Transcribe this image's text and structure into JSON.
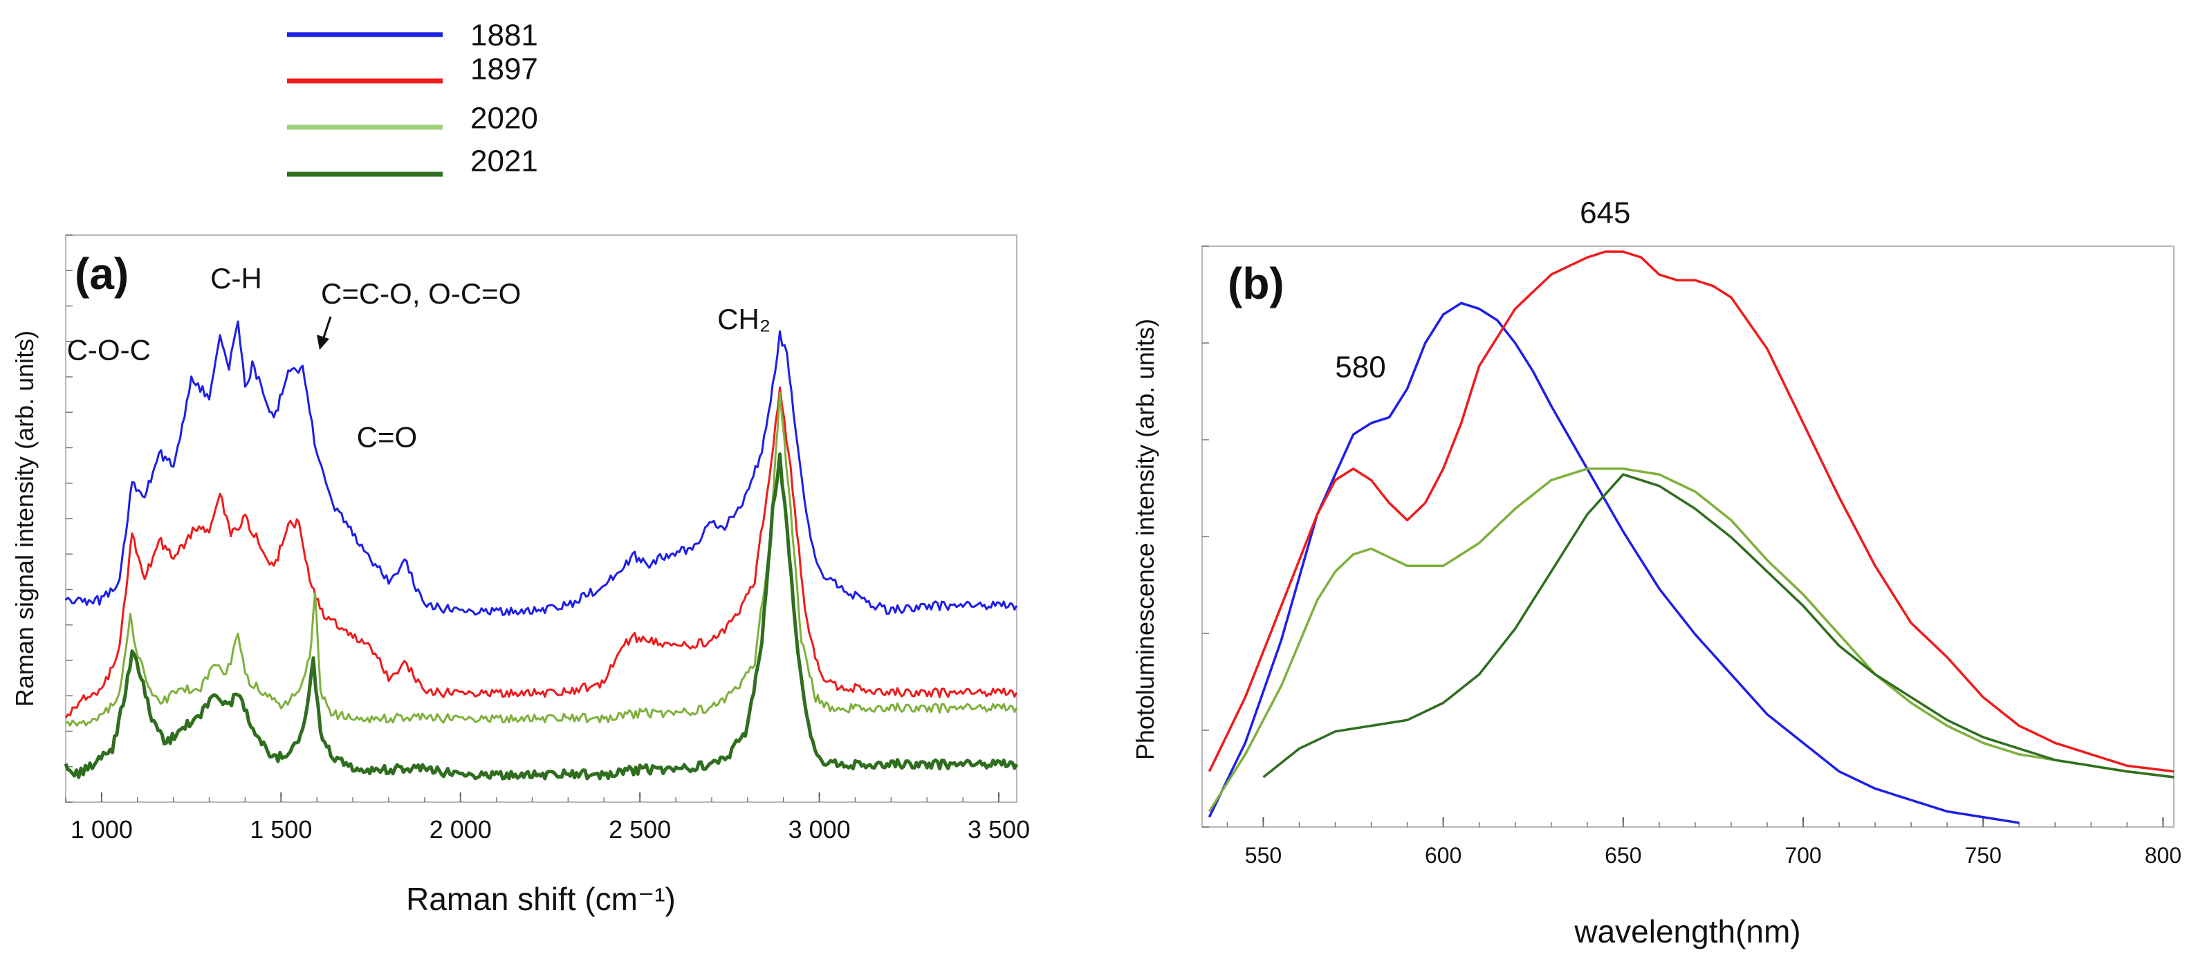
{
  "legend": [
    {
      "label": "1881",
      "color": "#1f1fe6"
    },
    {
      "label": "1897",
      "color": "#ee1c1c"
    },
    {
      "label": "2020",
      "color": "#9fd07a"
    },
    {
      "label": "2021",
      "color": "#2f6e1f"
    }
  ],
  "chart_data": [
    {
      "type": "line",
      "panel_label": "(a)",
      "xlabel": "Raman shift (cm⁻¹)",
      "ylabel": "Raman signal intensity (arb. units)",
      "xlim": [
        900,
        3550
      ],
      "ylim": [
        0,
        100
      ],
      "xticks": [
        1000,
        1500,
        2000,
        2500,
        3000,
        3500
      ],
      "xtick_labels": [
        "1 000",
        "1 500",
        "2 000",
        "2 500",
        "3 000",
        "3 500"
      ],
      "annotations": [
        {
          "text": "C-O-C",
          "x": 1020,
          "y": 81
        },
        {
          "text": "C-H",
          "x": 1375,
          "y": 95
        },
        {
          "text": "C=C-O, O-C=O",
          "x": 1890,
          "y": 92
        },
        {
          "text": "C=O",
          "x": 1795,
          "y": 64
        },
        {
          "text": "CH₂",
          "x": 2790,
          "y": 87
        }
      ],
      "series": [
        {
          "name": "1881",
          "color": "#1f1fe6",
          "x": [
            900,
            1000,
            1050,
            1085,
            1120,
            1160,
            1200,
            1250,
            1300,
            1330,
            1355,
            1380,
            1400,
            1420,
            1450,
            1480,
            1520,
            1560,
            1580,
            1600,
            1650,
            1700,
            1750,
            1800,
            1850,
            1870,
            1900,
            2000,
            2100,
            2200,
            2300,
            2350,
            2400,
            2450,
            2480,
            2520,
            2580,
            2640,
            2700,
            2730,
            2780,
            2840,
            2870,
            2890,
            2910,
            2940,
            2970,
            3000,
            3050,
            3100,
            3150,
            3200,
            3300,
            3400,
            3550
          ],
          "y": [
            34,
            34,
            38,
            57,
            54,
            63,
            60,
            77,
            74,
            86,
            79,
            89,
            75,
            80,
            75,
            69,
            79,
            79,
            71,
            62,
            52,
            47,
            42,
            38,
            42,
            37,
            33,
            32,
            32,
            32,
            33,
            35,
            37,
            40,
            43,
            41,
            43,
            44,
            49,
            48,
            52,
            63,
            76,
            86,
            82,
            64,
            48,
            40,
            37,
            35,
            33,
            32,
            33,
            33,
            33
          ]
        },
        {
          "name": "1897",
          "color": "#ee1c1c",
          "x": [
            900,
            950,
            1000,
            1050,
            1085,
            1120,
            1160,
            1200,
            1260,
            1300,
            1330,
            1360,
            1400,
            1450,
            1480,
            1520,
            1550,
            1580,
            1620,
            1700,
            1750,
            1800,
            1850,
            1870,
            1900,
            2000,
            2100,
            2200,
            2300,
            2400,
            2450,
            2480,
            2520,
            2600,
            2700,
            2760,
            2820,
            2860,
            2890,
            2920,
            2960,
            3000,
            3050,
            3100,
            3200,
            3300,
            3400,
            3550
          ],
          "y": [
            11,
            15,
            16,
            25,
            47,
            38,
            46,
            42,
            48,
            48,
            55,
            47,
            50,
            44,
            40,
            49,
            49,
            38,
            31,
            27,
            25,
            19,
            22,
            19,
            16,
            16,
            16,
            16,
            16,
            18,
            25,
            27,
            26,
            25,
            26,
            30,
            38,
            58,
            75,
            60,
            32,
            20,
            17,
            17,
            16,
            16,
            16,
            16
          ]
        },
        {
          "name": "2020",
          "color": "#7fb03c",
          "x": [
            900,
            950,
            1000,
            1050,
            1080,
            1095,
            1130,
            1170,
            1220,
            1270,
            1320,
            1340,
            1360,
            1380,
            1400,
            1450,
            1500,
            1550,
            1580,
            1595,
            1610,
            1640,
            1700,
            1800,
            1900,
            2000,
            2100,
            2200,
            2300,
            2400,
            2500,
            2600,
            2700,
            2760,
            2820,
            2860,
            2890,
            2920,
            2950,
            2990,
            3030,
            3100,
            3200,
            3300,
            3400,
            3550
          ],
          "y": [
            10,
            10,
            11,
            16,
            31,
            25,
            17,
            14,
            17,
            16,
            22,
            19,
            22,
            28,
            19,
            16,
            13,
            16,
            23,
            35,
            16,
            12,
            11,
            11,
            11,
            11,
            11,
            11,
            11,
            11,
            12,
            12,
            13,
            16,
            22,
            44,
            74,
            52,
            26,
            15,
            13,
            13,
            13,
            13,
            13,
            13
          ]
        },
        {
          "name": "2021",
          "color": "#2f6e1f",
          "x": [
            900,
            930,
            980,
            1030,
            1060,
            1085,
            1110,
            1140,
            1180,
            1220,
            1270,
            1320,
            1350,
            1380,
            1410,
            1440,
            1480,
            1520,
            1560,
            1590,
            1610,
            1650,
            1700,
            1800,
            1900,
            2000,
            2100,
            2200,
            2300,
            2400,
            2500,
            2600,
            2700,
            2750,
            2800,
            2840,
            2870,
            2890,
            2910,
            2940,
            2970,
            3000,
            3050,
            3100,
            3200,
            3300,
            3400,
            3550
          ],
          "y": [
            2,
            0,
            2,
            5,
            14,
            24,
            19,
            11,
            6,
            9,
            11,
            16,
            13,
            16,
            11,
            7,
            3,
            4,
            8,
            22,
            8,
            3,
            1,
            1,
            1,
            0,
            0,
            0,
            0,
            0,
            1,
            1,
            2,
            4,
            9,
            26,
            52,
            62,
            48,
            24,
            9,
            3,
            2,
            2,
            2,
            2,
            2,
            2
          ]
        }
      ]
    },
    {
      "type": "line",
      "panel_label": "(b)",
      "xlabel": "wavelength(nm)",
      "ylabel": "Photoluminescence intensity (arb. units)",
      "xlim": [
        533,
        803
      ],
      "ylim": [
        0,
        100
      ],
      "xticks": [
        550,
        600,
        650,
        700,
        750,
        800
      ],
      "xtick_labels": [
        "550",
        "600",
        "650",
        "700",
        "750",
        "800"
      ],
      "annotations": [
        {
          "text": "645",
          "x": 645,
          "y": 105
        },
        {
          "text": "580",
          "x": 577,
          "y": 78
        }
      ],
      "series": [
        {
          "name": "1881",
          "color": "#1f1fe6",
          "x": [
            535,
            545,
            555,
            565,
            570,
            575,
            580,
            585,
            590,
            595,
            600,
            605,
            610,
            615,
            620,
            625,
            630,
            640,
            650,
            660,
            670,
            680,
            690,
            700,
            710,
            720,
            730,
            740,
            750,
            760
          ],
          "y": [
            1,
            14,
            32,
            54,
            61,
            68,
            70,
            71,
            76,
            84,
            89,
            91,
            90,
            88,
            84,
            79,
            73,
            62,
            51,
            41,
            33,
            26,
            19,
            14,
            9,
            6,
            4,
            2,
            1,
            0
          ]
        },
        {
          "name": "1897",
          "color": "#ee1c1c",
          "x": [
            535,
            545,
            555,
            565,
            570,
            575,
            580,
            585,
            590,
            595,
            600,
            605,
            610,
            620,
            630,
            640,
            645,
            650,
            655,
            660,
            665,
            670,
            675,
            680,
            690,
            700,
            710,
            720,
            730,
            740,
            750,
            760,
            770,
            780,
            790,
            803
          ],
          "y": [
            9,
            22,
            38,
            54,
            60,
            62,
            60,
            56,
            53,
            56,
            62,
            70,
            80,
            90,
            96,
            99,
            100,
            100,
            99,
            96,
            95,
            95,
            94,
            92,
            83,
            70,
            57,
            45,
            35,
            29,
            22,
            17,
            14,
            12,
            10,
            9
          ]
        },
        {
          "name": "2020",
          "color": "#7fb03c",
          "x": [
            535,
            545,
            555,
            565,
            570,
            575,
            580,
            590,
            600,
            610,
            620,
            630,
            640,
            650,
            660,
            670,
            680,
            690,
            700,
            710,
            720,
            730,
            740,
            750,
            760,
            770,
            780,
            790,
            803
          ],
          "y": [
            2,
            12,
            24,
            39,
            44,
            47,
            48,
            45,
            45,
            49,
            55,
            60,
            62,
            62,
            61,
            58,
            53,
            46,
            40,
            33,
            26,
            21,
            17,
            14,
            12,
            11,
            10,
            9,
            8
          ]
        },
        {
          "name": "2021",
          "color": "#2f6e1f",
          "x": [
            550,
            560,
            570,
            580,
            590,
            600,
            610,
            620,
            630,
            640,
            650,
            660,
            670,
            680,
            690,
            700,
            710,
            720,
            730,
            740,
            750,
            760,
            770,
            780,
            790,
            803
          ],
          "y": [
            8,
            13,
            16,
            17,
            18,
            21,
            26,
            34,
            44,
            54,
            61,
            59,
            55,
            50,
            44,
            38,
            31,
            26,
            22,
            18,
            15,
            13,
            11,
            10,
            9,
            8
          ]
        }
      ]
    }
  ]
}
